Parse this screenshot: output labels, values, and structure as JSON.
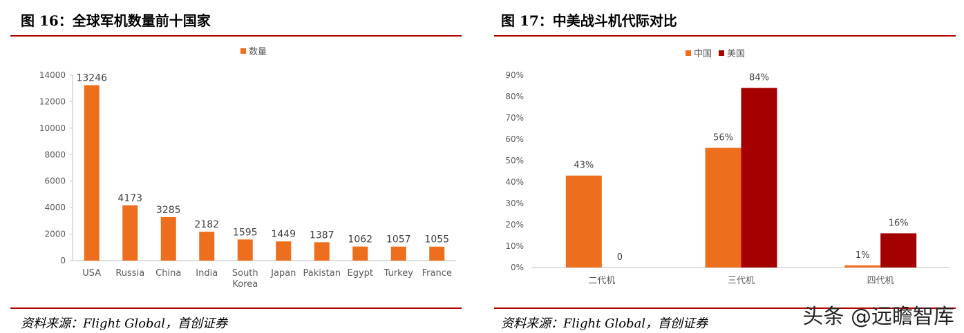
{
  "left": {
    "title": "图 16：全球军机数量前十国家",
    "source": "资料来源：Flight Global，首创证券",
    "chart_data": {
      "type": "bar",
      "categories": [
        "USA",
        "Russia",
        "China",
        "India",
        "South Korea",
        "Japan",
        "Pakistan",
        "Egypt",
        "Turkey",
        "France"
      ],
      "series": [
        {
          "name": "数量",
          "values": [
            13246,
            4173,
            3285,
            2182,
            1595,
            1449,
            1387,
            1062,
            1057,
            1055
          ],
          "color": "#ED6F1E"
        }
      ],
      "data_labels": [
        "13246",
        "4173",
        "3285",
        "2182",
        "1595",
        "1449",
        "1387",
        "1062",
        "1057",
        "1055"
      ],
      "ylim": [
        0,
        14000
      ],
      "yticks": [
        "0",
        "2000",
        "4000",
        "6000",
        "8000",
        "10000",
        "12000",
        "14000"
      ],
      "legend_position": "top",
      "grid": false
    }
  },
  "right": {
    "title": "图 17：中美战斗机代际对比",
    "source": "资料来源：Flight Global，首创证券",
    "chart_data": {
      "type": "bar",
      "categories": [
        "二代机",
        "三代机",
        "四代机"
      ],
      "series": [
        {
          "name": "中国",
          "values": [
            43,
            56,
            1
          ],
          "labels": [
            "43%",
            "56%",
            "1%"
          ],
          "color": "#ED6F1E"
        },
        {
          "name": "美国",
          "values": [
            0,
            84,
            16
          ],
          "labels": [
            "0",
            "84%",
            "16%"
          ],
          "color": "#A50000"
        }
      ],
      "ylim": [
        0,
        90
      ],
      "yticks": [
        "0%",
        "10%",
        "20%",
        "30%",
        "40%",
        "50%",
        "60%",
        "70%",
        "80%",
        "90%"
      ],
      "legend_position": "top",
      "grid": false
    }
  },
  "watermark": "头条 @远瞻智库"
}
